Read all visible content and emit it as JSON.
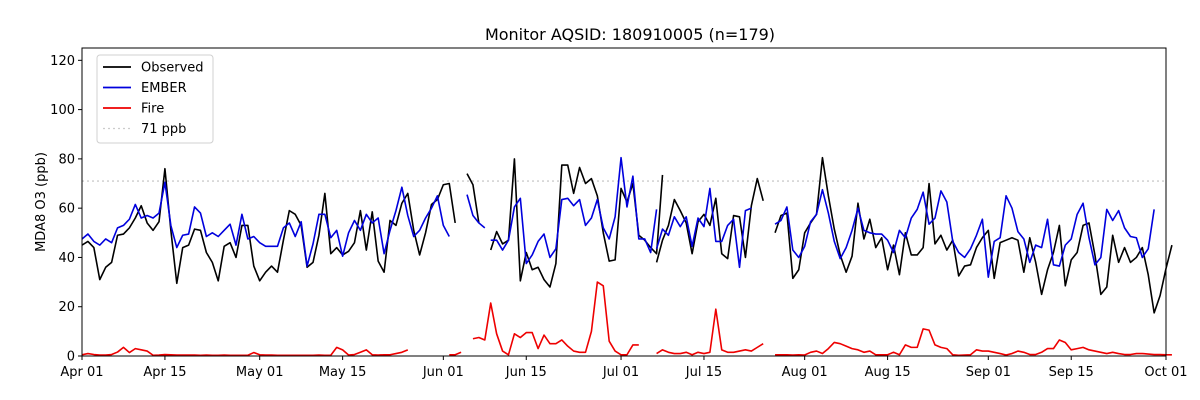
{
  "chart_data": {
    "type": "line",
    "title": "Monitor AQSID: 180910005 (n=179)",
    "xlabel": "",
    "ylabel": "MDA8 O3 (ppb)",
    "xlim": [
      "2024-04-01",
      "2024-10-01"
    ],
    "ylim": [
      0,
      125
    ],
    "yticks": [
      0,
      20,
      40,
      60,
      80,
      100,
      120
    ],
    "xticks": [
      {
        "date": "2024-04-01",
        "label": "Apr 01"
      },
      {
        "date": "2024-04-15",
        "label": "Apr 15"
      },
      {
        "date": "2024-05-01",
        "label": "May 01"
      },
      {
        "date": "2024-05-15",
        "label": "May 15"
      },
      {
        "date": "2024-06-01",
        "label": "Jun 01"
      },
      {
        "date": "2024-06-15",
        "label": "Jun 15"
      },
      {
        "date": "2024-07-01",
        "label": "Jul 01"
      },
      {
        "date": "2024-07-15",
        "label": "Jul 15"
      },
      {
        "date": "2024-08-01",
        "label": "Aug 01"
      },
      {
        "date": "2024-08-15",
        "label": "Aug 15"
      },
      {
        "date": "2024-09-01",
        "label": "Sep 01"
      },
      {
        "date": "2024-09-15",
        "label": "Sep 15"
      },
      {
        "date": "2024-10-01",
        "label": "Oct 01"
      }
    ],
    "grid": false,
    "legend_position": "top-left",
    "threshold": {
      "name": "71 ppb",
      "value": 71,
      "color": "#cccccc"
    },
    "series": [
      {
        "name": "Observed",
        "color": "#000000",
        "segments": [
          {
            "start": "2024-04-01",
            "values": [
              45,
              46.5,
              44,
              31,
              36,
              38,
              49,
              49.5,
              52,
              56,
              61,
              54,
              51,
              54.5,
              76,
              51,
              29.5,
              44,
              45,
              51.5,
              51,
              42,
              38,
              30.5,
              44.5,
              46,
              40,
              53,
              53,
              36.5,
              30.5,
              34,
              36.5,
              34,
              47,
              59,
              57.5,
              53,
              36,
              38,
              49,
              66,
              41.5,
              44,
              41,
              42.5,
              46,
              59,
              43,
              58.5,
              38.5,
              34,
              55,
              53,
              62,
              66,
              51,
              41,
              50,
              61.5,
              63.5,
              69.5,
              70,
              54
            ]
          },
          {
            "start": "2024-06-05",
            "values": [
              74,
              69.5,
              54
            ]
          },
          {
            "start": "2024-06-09",
            "values": [
              43,
              50.5,
              45.5,
              47,
              80,
              30.5,
              42,
              35,
              36,
              31,
              28,
              37.5,
              77.5,
              77.5,
              66,
              76.5,
              70,
              72,
              65,
              50,
              38.5,
              39,
              68,
              62.5,
              70,
              49,
              47,
              44,
              41.5,
              73.5
            ]
          },
          {
            "start": "2024-07-07",
            "values": [
              38,
              47,
              53,
              63.5,
              59,
              54,
              41.5,
              54.5,
              57.5,
              53,
              64,
              41.5,
              39.5,
              57,
              56.5,
              40,
              61,
              72,
              63
            ]
          },
          {
            "start": "2024-07-27",
            "values": [
              50,
              57,
              58,
              31.5,
              35,
              50,
              54,
              57.5,
              80.5,
              65,
              51.5,
              41,
              34,
              40.5,
              62,
              47.5,
              55.5,
              44,
              48,
              35,
              45,
              33,
              50,
              41,
              41,
              44,
              70,
              45.5,
              49,
              43,
              47,
              32.5,
              36.5,
              37,
              44,
              48,
              51,
              31.5,
              46,
              47,
              48,
              47,
              34,
              48,
              38,
              25,
              35,
              42,
              53,
              28.5,
              39,
              42,
              53,
              54,
              41,
              25,
              28,
              49,
              38,
              44,
              38,
              40,
              44,
              33,
              17.5,
              24.5,
              35.5,
              45
            ]
          }
        ]
      },
      {
        "name": "EMBER",
        "color": "#0000dd",
        "segments": [
          {
            "start": "2024-04-01",
            "values": [
              47.5,
              49.5,
              46.5,
              45,
              47.5,
              46,
              52,
              53,
              55.5,
              61.5,
              56,
              57,
              56,
              58,
              70.5,
              53,
              44,
              49,
              49.5,
              60.5,
              58,
              48.5,
              50,
              48.5,
              51,
              53.5,
              45,
              57.5,
              47.5,
              48.5,
              46,
              44.5,
              44.5,
              44.5,
              52,
              54,
              48.5,
              54.5,
              36.5,
              45.5,
              57.5,
              57.5,
              48,
              51,
              40.5,
              50,
              55,
              51,
              57.5,
              54,
              56,
              41.5,
              51,
              59,
              68.5,
              57,
              48.5,
              51,
              56,
              60,
              65,
              53,
              48.5
            ]
          },
          {
            "start": "2024-06-05",
            "values": [
              65.5,
              57,
              54,
              52
            ]
          },
          {
            "start": "2024-06-09",
            "values": [
              47,
              47,
              43,
              47,
              60.5,
              64,
              37.5,
              41,
              46.5,
              49.5,
              40,
              43.5,
              63.5,
              64,
              61,
              63.5,
              53,
              56,
              63.5,
              52,
              47.5,
              56.5,
              80.5,
              60.5,
              73,
              47.5,
              47.5,
              42,
              59.5
            ]
          },
          {
            "start": "2024-07-07",
            "values": [
              43.5,
              51.5,
              49,
              56.5,
              52.5,
              56.5,
              44.5,
              56,
              52.5,
              68,
              46.5,
              46.5,
              53,
              55.5,
              36,
              59,
              60
            ]
          },
          {
            "start": "2024-07-27",
            "values": [
              53.5,
              55,
              60.5,
              43,
              40,
              44.5,
              54.5,
              57.5,
              67.5,
              58,
              46.5,
              39.5,
              44,
              51,
              60,
              51,
              50,
              49.5,
              49.5,
              47,
              42,
              51,
              48,
              56,
              59.5,
              66.5,
              53.5,
              56,
              67,
              62.5,
              46.5,
              42,
              40,
              43.5,
              49,
              55.5,
              32,
              46.5,
              48,
              65,
              60,
              50.5,
              47.5,
              38,
              45,
              44,
              55.5,
              37,
              36.5,
              45,
              47.5,
              57.5,
              62,
              48,
              37,
              40,
              59.5,
              55,
              59,
              52,
              48.5,
              48,
              40,
              43.5,
              59.5
            ]
          }
        ]
      },
      {
        "name": "Fire",
        "color": "#ee0000",
        "segments": [
          {
            "start": "2024-04-01",
            "values": [
              0.5,
              1,
              0.6,
              0.4,
              0.4,
              0.6,
              1.6,
              3.5,
              1.4,
              3,
              2.5,
              2,
              0.3,
              0.4,
              0.6,
              0.5,
              0.4,
              0.4,
              0.4,
              0.4,
              0.3,
              0.4,
              0.3,
              0.3,
              0.4,
              0.3,
              0.3,
              0.3,
              0.3,
              1.4,
              0.5,
              0.4,
              0.4,
              0.3,
              0.3,
              0.3,
              0.3,
              0.3,
              0.3,
              0.3,
              0.4,
              0.3,
              0.3,
              3.5,
              2.5,
              0.4,
              0.6,
              1.5,
              2.5,
              0.5,
              0.4,
              0.5,
              0.5,
              1,
              1.5,
              2.5
            ]
          },
          {
            "start": "2024-06-02",
            "values": [
              0.5,
              0.5,
              1.5
            ]
          },
          {
            "start": "2024-06-06",
            "values": [
              7,
              7.5,
              6.5,
              21.5,
              9,
              2,
              0.5,
              9,
              7.5,
              9.5,
              9.5,
              3,
              8.5,
              5,
              5,
              6.5,
              4,
              2,
              1.5,
              1.5,
              10,
              30,
              28.5,
              6,
              2,
              0.5,
              0.5,
              4.5,
              4.5
            ]
          },
          {
            "start": "2024-07-07",
            "values": [
              1,
              2.5,
              1.5,
              1,
              1,
              1.5,
              0.5,
              1.5,
              1,
              1.5,
              19,
              2.5,
              1.5,
              1.5,
              2,
              2.5,
              2,
              3.5,
              5
            ]
          },
          {
            "start": "2024-07-27",
            "values": [
              0.5,
              0.5,
              0.5,
              0.4,
              0.5,
              0.4,
              1.5,
              2,
              1,
              3,
              5.5,
              5,
              4,
              3,
              2.5,
              1.5,
              2,
              0.5,
              0.5,
              0.5,
              1.5,
              0.5,
              4.5,
              3.5,
              3.5,
              11,
              10.5,
              4.5,
              3.5,
              3,
              0.5,
              0.3,
              0.4,
              0.5,
              2.5,
              2,
              2,
              1.5,
              1,
              0.4,
              1,
              2,
              1.5,
              0.6,
              0.6,
              1.5,
              3,
              3,
              6.5,
              5.5,
              2.5,
              3,
              3.5,
              2.5,
              2,
              1.5,
              1,
              1.5,
              1,
              0.6,
              0.6,
              1,
              1,
              0.8,
              0.6,
              0.6,
              0.5,
              0.5
            ]
          }
        ]
      }
    ]
  }
}
